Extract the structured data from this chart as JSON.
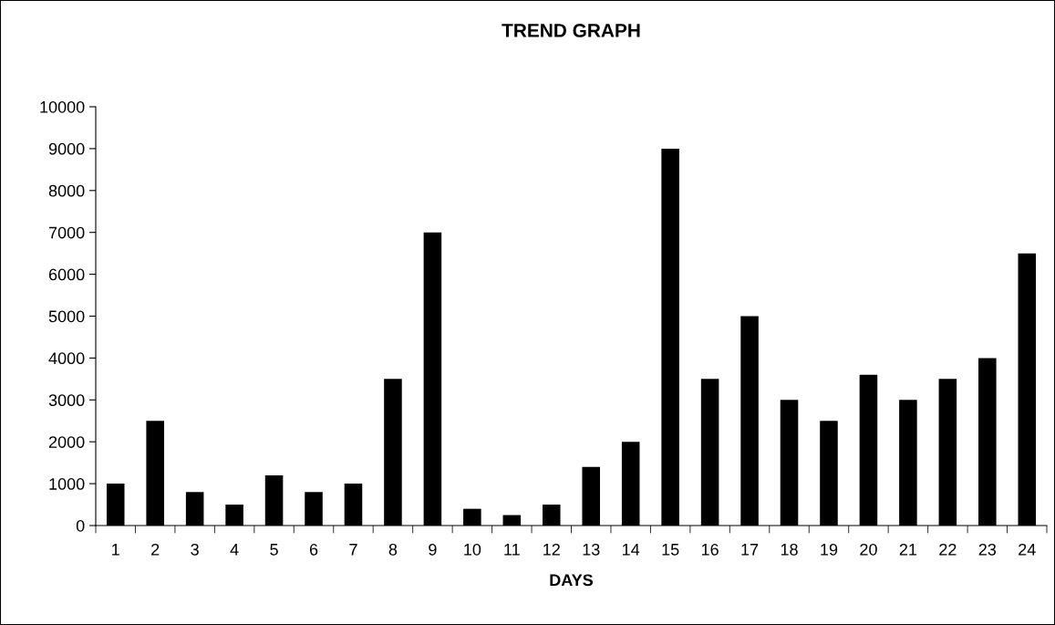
{
  "chart_data": {
    "type": "bar",
    "title": "TREND GRAPH",
    "xlabel": "DAYS",
    "categories": [
      "1",
      "2",
      "3",
      "4",
      "5",
      "6",
      "7",
      "8",
      "9",
      "10",
      "11",
      "12",
      "13",
      "14",
      "15",
      "16",
      "17",
      "18",
      "19",
      "20",
      "21",
      "22",
      "23",
      "24"
    ],
    "values": [
      1000,
      2500,
      800,
      500,
      1200,
      800,
      1000,
      3500,
      7000,
      400,
      250,
      500,
      1400,
      2000,
      9000,
      3500,
      5000,
      3000,
      2500,
      3600,
      3000,
      3500,
      4000,
      6500
    ],
    "color": "#000000",
    "ylim": [
      0,
      10000
    ],
    "yticks": [
      0,
      1000,
      2000,
      3000,
      4000,
      5000,
      6000,
      7000,
      8000,
      9000,
      10000
    ],
    "grid": false,
    "legend": false
  }
}
